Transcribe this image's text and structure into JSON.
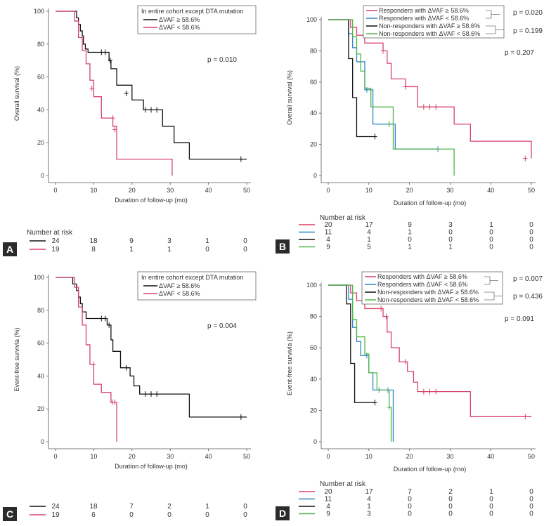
{
  "colors": {
    "red": "#d6436b",
    "black": "#111111",
    "blue": "#2f86c6",
    "green": "#4fb645"
  },
  "chart_data": [
    {
      "panel": "A",
      "type": "line",
      "xlabel": "Duration of follow-up (mo)",
      "ylabel": "Overall survival (%)",
      "xlim": [
        0,
        50
      ],
      "ylim": [
        0,
        100
      ],
      "xticks": [
        "0",
        "10",
        "20",
        "30",
        "40",
        "50"
      ],
      "yticks": [
        "0",
        "20",
        "40",
        "60",
        "80",
        "100"
      ],
      "legend_title": "In entire cohort except DTA mutation",
      "pvalues": [
        {
          "text": "p = 0.010"
        }
      ],
      "series": [
        {
          "name": "ΔVAF ≥ 58.6%",
          "color": "black",
          "x": [
            0,
            5.5,
            6,
            6.5,
            7,
            7.3,
            7.8,
            8.5,
            14,
            14.5,
            16,
            20,
            23,
            28,
            31,
            35,
            50
          ],
          "y": [
            100,
            96,
            92,
            88,
            85,
            80,
            77,
            75,
            70,
            65,
            55,
            46,
            40,
            30,
            20,
            10,
            10
          ],
          "censor": [
            [
              12,
              75
            ],
            [
              13,
              75
            ],
            [
              14.3,
              70
            ],
            [
              18.5,
              50
            ],
            [
              23.5,
              40
            ],
            [
              25,
              40
            ],
            [
              26.5,
              40
            ],
            [
              48.5,
              10
            ]
          ]
        },
        {
          "name": "ΔVAF < 58.6%",
          "color": "red",
          "x": [
            0,
            5,
            6,
            7,
            8,
            9,
            10,
            12,
            15,
            16,
            30.5,
            30.5
          ],
          "y": [
            100,
            94,
            84,
            76,
            68,
            58,
            48,
            35,
            30,
            10,
            10,
            0
          ],
          "censor": [
            [
              9.5,
              53
            ],
            [
              15.5,
              28
            ],
            [
              15,
              35
            ]
          ]
        }
      ],
      "risk": {
        "header": "Number at risk",
        "rows": [
          {
            "color": "black",
            "values": [
              "24",
              "18",
              "9",
              "3",
              "1",
              "0"
            ]
          },
          {
            "color": "red",
            "values": [
              "19",
              "8",
              "1",
              "1",
              "0",
              "0"
            ]
          }
        ]
      }
    },
    {
      "panel": "B",
      "type": "line",
      "xlabel": "Duration of follow-up (mo)",
      "ylabel": "Overall survival (%)",
      "xlim": [
        0,
        50
      ],
      "ylim": [
        0,
        100
      ],
      "xticks": [
        "0",
        "10",
        "20",
        "30",
        "40",
        "50"
      ],
      "yticks": [
        "0",
        "20",
        "40",
        "60",
        "80",
        "100"
      ],
      "legend": [
        "Responders with ΔVAF ≥ 58.6%",
        "Responders with ΔVAF < 58.6%",
        "Non-responders with ΔVAF ≥ 58.6%",
        "Non-responders with ΔVAF < 58.6%"
      ],
      "pvalues": [
        {
          "text": "p = 0.020"
        },
        {
          "text": "p = 0.199"
        },
        {
          "text": "p = 0.207"
        }
      ],
      "series": [
        {
          "name": "Responders with ΔVAF ≥ 58.6%",
          "color": "red",
          "x": [
            0,
            5.5,
            7,
            9,
            13.5,
            14.5,
            15.5,
            19,
            22,
            31,
            35,
            50
          ],
          "y": [
            100,
            95,
            90,
            85,
            80,
            72,
            62,
            57,
            44,
            33,
            22,
            11
          ],
          "censor": [
            [
              13.5,
              80
            ],
            [
              19,
              57
            ],
            [
              23.5,
              44
            ],
            [
              25,
              44
            ],
            [
              26.5,
              44
            ],
            [
              48.5,
              11
            ]
          ]
        },
        {
          "name": "Responders with ΔVAF < 58.6%",
          "color": "blue",
          "x": [
            0,
            5,
            6,
            7,
            9,
            11,
            15.5,
            16.5,
            27
          ],
          "y": [
            100,
            91,
            82,
            73,
            55,
            33,
            33,
            17,
            17
          ],
          "censor": [
            [
              9.5,
              55
            ],
            [
              15,
              33
            ],
            [
              27,
              17
            ]
          ]
        },
        {
          "name": "Non-responders with ΔVAF ≥ 58.6%",
          "color": "black",
          "x": [
            0,
            5,
            6,
            7,
            11.5
          ],
          "y": [
            100,
            75,
            50,
            25,
            25
          ],
          "censor": [
            [
              11.5,
              25
            ]
          ]
        },
        {
          "name": "Non-responders with ΔVAF < 58.6%",
          "color": "green",
          "x": [
            0,
            6,
            7,
            8,
            9,
            10.5,
            16,
            31,
            31
          ],
          "y": [
            100,
            89,
            78,
            67,
            56,
            44,
            17,
            17,
            0
          ],
          "censor": [
            [
              15,
              33
            ]
          ]
        }
      ],
      "risk": {
        "header": "Number at risk",
        "rows": [
          {
            "color": "red",
            "values": [
              "20",
              "17",
              "9",
              "3",
              "1",
              "0"
            ]
          },
          {
            "color": "blue",
            "values": [
              "11",
              "4",
              "1",
              "0",
              "0",
              "0"
            ]
          },
          {
            "color": "black",
            "values": [
              "4",
              "1",
              "0",
              "0",
              "0",
              "0"
            ]
          },
          {
            "color": "green",
            "values": [
              "9",
              "5",
              "1",
              "1",
              "0",
              "0"
            ]
          }
        ]
      }
    },
    {
      "panel": "C",
      "type": "line",
      "xlabel": "Duration of follow-up (mo)",
      "ylabel": "Event-free survivla (%)",
      "xlim": [
        0,
        50
      ],
      "ylim": [
        0,
        100
      ],
      "xticks": [
        "0",
        "10",
        "20",
        "30",
        "40",
        "50"
      ],
      "yticks": [
        "0",
        "20",
        "40",
        "60",
        "80",
        "100"
      ],
      "legend_title": "In entire cohort except DTA mutation",
      "pvalues": [
        {
          "text": "p = 0.004"
        }
      ],
      "series": [
        {
          "name": "ΔVAF ≥ 58.6%",
          "color": "black",
          "x": [
            0,
            4.5,
            5.5,
            6,
            6.5,
            7,
            8,
            9,
            13.5,
            14.5,
            15,
            17,
            19.5,
            20.5,
            22,
            23,
            35,
            50
          ],
          "y": [
            100,
            96,
            92,
            88,
            84,
            79,
            75,
            75,
            71,
            62,
            55,
            45,
            40,
            34,
            29,
            29,
            15,
            15
          ],
          "censor": [
            [
              12,
              75
            ],
            [
              13,
              75
            ],
            [
              14,
              71
            ],
            [
              18.5,
              45
            ],
            [
              23.5,
              29
            ],
            [
              25,
              29
            ],
            [
              26.5,
              29
            ],
            [
              48.5,
              15
            ]
          ]
        },
        {
          "name": "ΔVAF < 58.6%",
          "color": "red",
          "x": [
            0,
            5,
            6,
            7,
            8,
            9,
            10,
            12,
            14.5,
            15.5,
            16,
            16
          ],
          "y": [
            100,
            94,
            82,
            71,
            59,
            47,
            35,
            30,
            24,
            24,
            24,
            0
          ],
          "censor": [
            [
              10,
              47
            ],
            [
              15.5,
              24
            ],
            [
              14.8,
              24
            ]
          ]
        }
      ],
      "risk": {
        "header": "",
        "rows": [
          {
            "color": "black",
            "values": [
              "24",
              "18",
              "7",
              "2",
              "1",
              "0"
            ]
          },
          {
            "color": "red",
            "values": [
              "19",
              "6",
              "0",
              "0",
              "0",
              "0"
            ]
          }
        ]
      }
    },
    {
      "panel": "D",
      "type": "line",
      "xlabel": "Duration of follow-up (mo)",
      "ylabel": "Event-free survivla (%)",
      "xlim": [
        0,
        50
      ],
      "ylim": [
        0,
        100
      ],
      "xticks": [
        "0",
        "10",
        "20",
        "30",
        "40",
        "50"
      ],
      "yticks": [
        "0",
        "20",
        "40",
        "60",
        "80",
        "100"
      ],
      "legend": [
        "Responders with ΔVAF ≥ 58.6%",
        "Responders with ΔVAF < 58.6%",
        "Non-responders with ΔVAF ≥ 58.6%",
        "Non-responders with ΔVAF < 58.6%"
      ],
      "pvalues": [
        {
          "text": "p = 0.007"
        },
        {
          "text": "p = 0.436"
        },
        {
          "text": "p = 0.091"
        }
      ],
      "series": [
        {
          "name": "Responders with ΔVAF ≥ 58.6%",
          "color": "red",
          "x": [
            0,
            5.5,
            7,
            9,
            13.5,
            14.5,
            15.5,
            17.5,
            19.5,
            21,
            22,
            35,
            50
          ],
          "y": [
            100,
            95,
            90,
            85,
            80,
            70,
            60,
            51,
            45,
            38,
            32,
            16,
            16
          ],
          "censor": [
            [
              13,
              85
            ],
            [
              14.3,
              80
            ],
            [
              19,
              51
            ],
            [
              23.5,
              32
            ],
            [
              25,
              32
            ],
            [
              26.5,
              32
            ],
            [
              48.5,
              16
            ]
          ]
        },
        {
          "name": "Responders with ΔVAF < 58.6%",
          "color": "blue",
          "x": [
            0,
            5,
            6,
            7,
            8,
            9,
            10,
            11,
            15,
            16,
            16
          ],
          "y": [
            100,
            91,
            73,
            64,
            55,
            55,
            44,
            33,
            33,
            33,
            0
          ],
          "censor": [
            [
              9.5,
              55
            ],
            [
              12.5,
              33
            ],
            [
              14.7,
              33
            ]
          ]
        },
        {
          "name": "Non-responders with ΔVAF ≥ 58.6%",
          "color": "black",
          "x": [
            0,
            4.5,
            5.5,
            6.5,
            11.5
          ],
          "y": [
            100,
            88,
            50,
            25,
            25
          ],
          "censor": [
            [
              11.5,
              25
            ]
          ]
        },
        {
          "name": "Non-responders with ΔVAF < 58.6%",
          "color": "green",
          "x": [
            0,
            6,
            7,
            9,
            10,
            12,
            15,
            15.5,
            15.5
          ],
          "y": [
            100,
            78,
            67,
            56,
            44,
            33,
            22,
            22,
            0
          ],
          "censor": [
            [
              15,
              22
            ]
          ]
        }
      ],
      "risk": {
        "header": "Number at risk",
        "rows": [
          {
            "color": "red",
            "values": [
              "20",
              "17",
              "7",
              "2",
              "1",
              "0"
            ]
          },
          {
            "color": "blue",
            "values": [
              "11",
              "4",
              "0",
              "0",
              "0",
              "0"
            ]
          },
          {
            "color": "black",
            "values": [
              "4",
              "1",
              "0",
              "0",
              "0",
              "0"
            ]
          },
          {
            "color": "green",
            "values": [
              "9",
              "3",
              "0",
              "0",
              "0",
              "0"
            ]
          }
        ]
      }
    }
  ],
  "panel_labels": [
    "A",
    "B",
    "C",
    "D"
  ],
  "risk_header": "Number at risk"
}
